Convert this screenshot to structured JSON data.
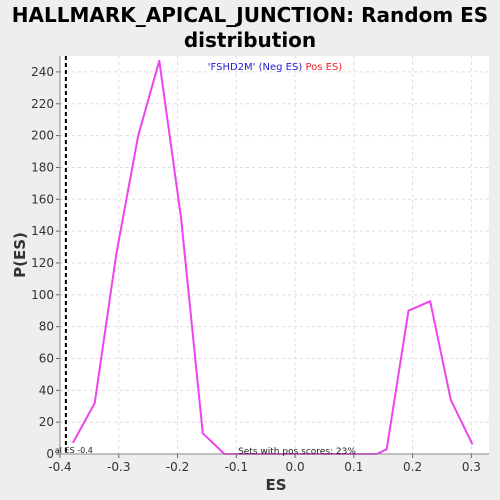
{
  "chart_data": {
    "type": "line",
    "title_line1": "HALLMARK_APICAL_JUNCTION: Random ES",
    "title_line2": "distribution",
    "xlabel": "ES",
    "ylabel": "P(ES)",
    "xlim": [
      -0.4,
      0.33
    ],
    "ylim": [
      0,
      250
    ],
    "xticks": [
      -0.4,
      -0.3,
      -0.2,
      -0.1,
      0.0,
      0.1,
      0.2,
      0.3
    ],
    "xtick_labels": [
      "-0.4",
      "-0.3",
      "-0.2",
      "-0.1",
      "0.0",
      "0.1",
      "0.2",
      "0.3"
    ],
    "yticks": [
      0,
      20,
      40,
      60,
      80,
      100,
      120,
      140,
      160,
      180,
      200,
      220,
      240
    ],
    "grid": true,
    "series": [
      {
        "color": "#ee44ee",
        "x": [
          -0.378,
          -0.341,
          -0.304,
          -0.267,
          -0.231,
          -0.194,
          -0.157,
          -0.12,
          -0.083,
          -0.046,
          -0.009,
          0.028,
          0.065,
          0.102,
          0.139,
          0.156,
          0.193,
          0.23,
          0.265,
          0.302
        ],
        "y": [
          7,
          32,
          126,
          200,
          247,
          148,
          13,
          0,
          0,
          0,
          0,
          0,
          0,
          0,
          0,
          3,
          90,
          96,
          34,
          6
        ]
      }
    ],
    "legend": {
      "label": "'FSHD2M'",
      "neg": "(Neg ES)",
      "pos": "Pos ES)",
      "label_color": "#2222cc",
      "neg_color": "#2222cc",
      "pos_color": "#ee2222"
    },
    "reference_line": {
      "x": -0.39,
      "label": "al ES -0.4"
    },
    "annotation": "Sets with pos scores: 23%"
  }
}
